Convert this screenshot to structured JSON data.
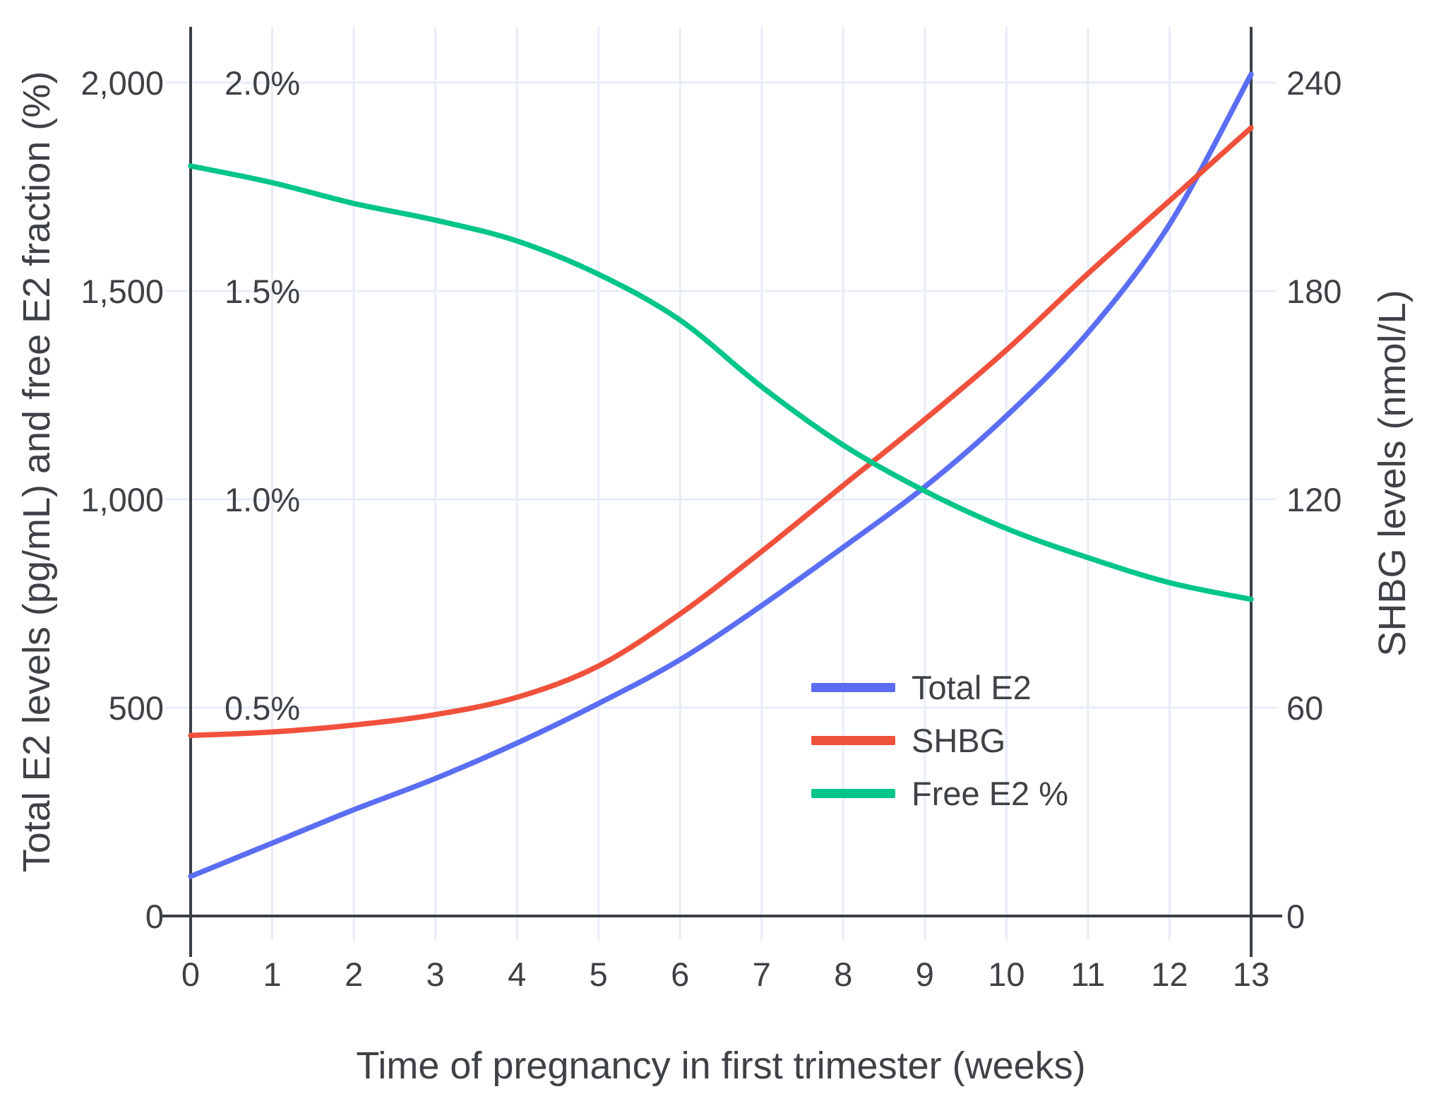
{
  "figure": {
    "x_axis_title": "Time of pregnancy in first trimester (weeks)",
    "y_left_axis_title": "Total E2 levels (pg/mL) and free E2 fraction (%)",
    "y_right_axis_title": "SHBG levels (nmol/L)"
  },
  "colors": {
    "total_e2": "#5b6ef3",
    "shbg": "#f0513c",
    "free_e2": "#00c589",
    "grid": "#e7ecf7",
    "axis": "#3a3f45",
    "text": "#3e4145",
    "background": "#ffffff"
  },
  "legend": {
    "items": [
      {
        "label": "Total E2",
        "color": "#5b6ef3"
      },
      {
        "label": "SHBG",
        "color": "#f0513c"
      },
      {
        "label": "Free E2 %",
        "color": "#00c589"
      }
    ]
  },
  "chart_data": {
    "type": "line",
    "title": "",
    "xlabel": "Time of pregnancy in first trimester (weeks)",
    "x": [
      0,
      1,
      2,
      3,
      4,
      5,
      6,
      7,
      8,
      9,
      10,
      11,
      12,
      13
    ],
    "x_tick_labels": [
      "0",
      "1",
      "2",
      "3",
      "4",
      "5",
      "6",
      "7",
      "8",
      "9",
      "10",
      "11",
      "12",
      "13"
    ],
    "xlim": [
      0,
      13
    ],
    "grid": true,
    "legend_position": "inside-middle-right",
    "y_left": {
      "label": "Total E2 levels (pg/mL) and free E2 fraction (%)",
      "ticks": [
        0,
        500,
        1000,
        1500,
        2000
      ],
      "tick_labels": [
        "0",
        "500",
        "1,000",
        "1,500",
        "2,000"
      ],
      "pct_ticks": [
        500,
        1000,
        1500,
        2000
      ],
      "pct_tick_labels": [
        "0.5%",
        "1.0%",
        "1.5%",
        "2.0%"
      ],
      "range": [
        0,
        2130
      ]
    },
    "y_right": {
      "label": "SHBG levels (nmol/L)",
      "ticks": [
        0,
        60,
        120,
        180,
        240
      ],
      "tick_labels": [
        "0",
        "60",
        "120",
        "180",
        "240"
      ],
      "range": [
        0,
        255.6
      ]
    },
    "series": [
      {
        "name": "Total E2",
        "axis": "left",
        "unit": "pg/mL",
        "color": "#5b6ef3",
        "values": [
          95,
          175,
          255,
          330,
          415,
          510,
          615,
          745,
          885,
          1030,
          1200,
          1400,
          1660,
          2020
        ]
      },
      {
        "name": "SHBG",
        "axis": "right",
        "unit": "nmol/L",
        "color": "#f0513c",
        "values": [
          52,
          53,
          55,
          58,
          63,
          72,
          87,
          105,
          124,
          143,
          163,
          185,
          206,
          227
        ]
      },
      {
        "name": "Free E2 %",
        "axis": "percent",
        "unit": "%",
        "color": "#00c589",
        "values": [
          1.8,
          1.76,
          1.71,
          1.67,
          1.62,
          1.54,
          1.43,
          1.27,
          1.13,
          1.02,
          0.93,
          0.86,
          0.8,
          0.76
        ]
      }
    ]
  }
}
